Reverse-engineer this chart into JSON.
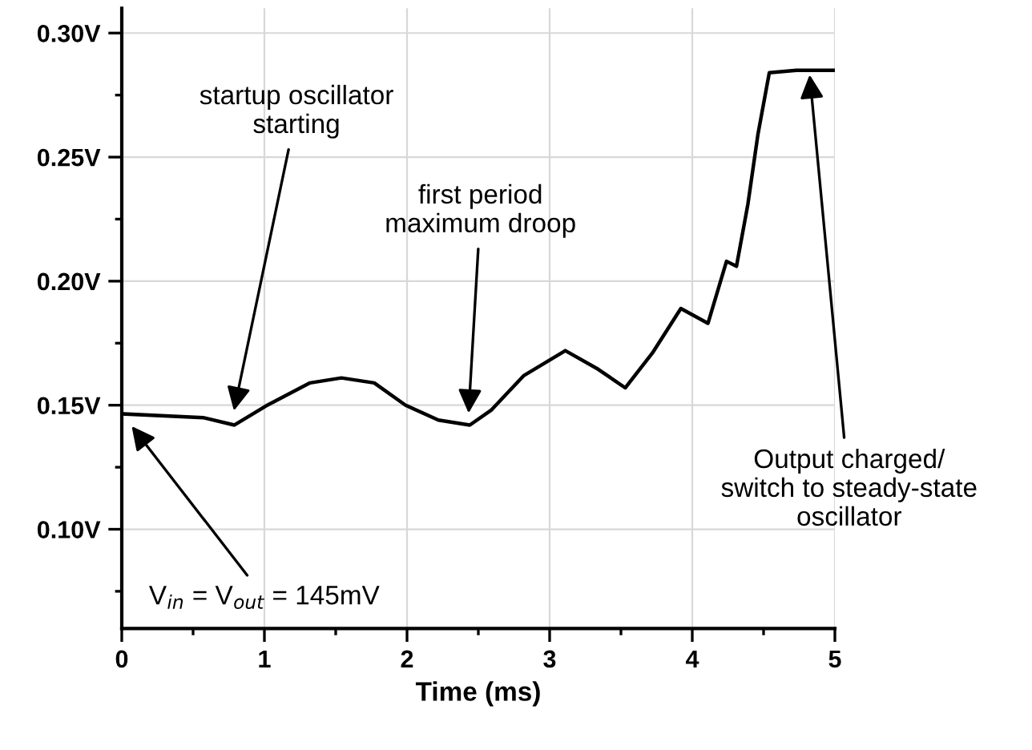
{
  "chart_data": {
    "type": "line",
    "xlabel": "Time (ms)",
    "x": [
      0.01,
      0.57,
      0.79,
      1.02,
      1.32,
      1.54,
      1.77,
      1.99,
      2.22,
      2.44,
      2.59,
      2.82,
      3.11,
      3.34,
      3.53,
      3.72,
      3.92,
      4.11,
      4.24,
      4.31,
      4.39,
      4.46,
      4.54,
      4.73,
      4.99
    ],
    "series": [
      {
        "color": "#000000",
        "values": [
          0.1465,
          0.145,
          0.142,
          0.15,
          0.159,
          0.161,
          0.159,
          0.15,
          0.144,
          0.142,
          0.148,
          0.162,
          0.172,
          0.1645,
          0.157,
          0.171,
          0.189,
          0.183,
          0.208,
          0.206,
          0.231,
          0.259,
          0.284,
          0.285,
          0.285
        ]
      }
    ],
    "xlim": [
      0,
      5
    ],
    "xticks": [
      0,
      1,
      2,
      3,
      4,
      5
    ],
    "ylim": [
      0.06,
      0.31
    ],
    "yticks": [
      {
        "value": 0.1,
        "label": "0.10V"
      },
      {
        "value": 0.15,
        "label": "0.15V"
      },
      {
        "value": 0.2,
        "label": "0.20V"
      },
      {
        "value": 0.25,
        "label": "0.25V"
      },
      {
        "value": 0.3,
        "label": "0.30V"
      }
    ],
    "grid": true,
    "marker": "none",
    "line_style": "solid",
    "legend": false,
    "annotations": [
      {
        "text": "startup oscillator\nstarting",
        "x": 0.78,
        "y": 0.146
      },
      {
        "text": "first period\nmaximum droop",
        "x": 2.43,
        "y": 0.145
      },
      {
        "text": "Output charged/\nswitch to steady-state\noscillator",
        "x": 4.82,
        "y": 0.285
      },
      {
        "text": "V$_{in}$ = V$_{out}$ = 145mV",
        "x": 0.05,
        "y": 0.143
      }
    ]
  }
}
